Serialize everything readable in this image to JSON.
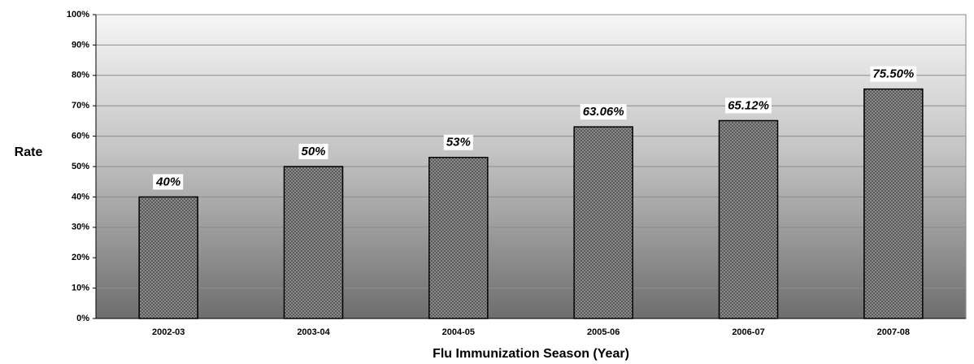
{
  "chart_data": {
    "type": "bar",
    "x_label": "Flu Immunization Season (Year)",
    "y_label": "Rate",
    "categories": [
      "2002-03",
      "2003-04",
      "2004-05",
      "2005-06",
      "2006-07",
      "2007-08"
    ],
    "values": [
      40,
      50,
      53,
      63.06,
      65.12,
      75.5
    ],
    "value_labels": [
      "40%",
      "50%",
      "53%",
      "63.06%",
      "65.12%",
      "75.50%"
    ],
    "color": "#8a8a8a",
    "ylim": [
      0,
      100
    ],
    "yticks": [
      {
        "value": 0,
        "label": "0%"
      },
      {
        "value": 10,
        "label": "10%"
      },
      {
        "value": 20,
        "label": "20%"
      },
      {
        "value": 30,
        "label": "30%"
      },
      {
        "value": 40,
        "label": "40%"
      },
      {
        "value": 50,
        "label": "50%"
      },
      {
        "value": 60,
        "label": "60%"
      },
      {
        "value": 70,
        "label": "70%"
      },
      {
        "value": 80,
        "label": "80%"
      },
      {
        "value": 90,
        "label": "90%"
      },
      {
        "value": 100,
        "label": "100%"
      }
    ],
    "grid": true
  }
}
